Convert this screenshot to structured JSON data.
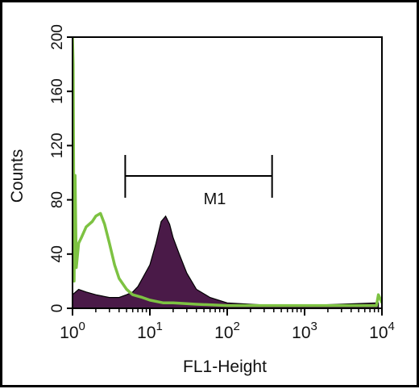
{
  "chart_data": {
    "type": "area",
    "xscale": "log",
    "xlim": [
      1,
      10000
    ],
    "ylim": [
      0,
      200
    ],
    "xlabel": "FL1-Height",
    "ylabel": "Counts",
    "yticks": [
      0,
      40,
      80,
      120,
      160,
      200
    ],
    "xtick_labels": [
      {
        "base": "10",
        "exp": "0"
      },
      {
        "base": "10",
        "exp": "1"
      },
      {
        "base": "10",
        "exp": "2"
      },
      {
        "base": "10",
        "exp": "3"
      },
      {
        "base": "10",
        "exp": "4"
      }
    ],
    "gate": {
      "label": "M1",
      "x_start": 4.8,
      "x_end": 380
    },
    "series": [
      {
        "style": "filled",
        "color": "#4a1a48",
        "x": [
          1,
          1.2,
          1.5,
          2,
          3,
          4,
          5,
          6,
          7,
          8,
          10,
          12,
          14,
          16,
          18,
          20,
          24,
          30,
          40,
          60,
          100,
          200,
          400,
          1000,
          9000
        ],
        "y": [
          10,
          14,
          12,
          10,
          8,
          8,
          10,
          12,
          16,
          22,
          32,
          48,
          64,
          68,
          62,
          52,
          40,
          26,
          14,
          8,
          4,
          3,
          2,
          2,
          4
        ]
      },
      {
        "style": "outline",
        "color": "#7dc242",
        "x": [
          1,
          1.02,
          1.05,
          1.08,
          1.12,
          1.2,
          1.3,
          1.5,
          1.8,
          2.0,
          2.3,
          2.6,
          3.0,
          3.5,
          4.0,
          5.0,
          6.0,
          8.0,
          10,
          15,
          20,
          40,
          100,
          1000,
          8500,
          9000,
          10000
        ],
        "y": [
          200,
          180,
          20,
          98,
          30,
          48,
          52,
          60,
          64,
          68,
          70,
          62,
          48,
          32,
          22,
          14,
          10,
          8,
          6,
          4,
          4,
          3,
          2,
          2,
          2,
          10,
          4
        ]
      }
    ]
  }
}
